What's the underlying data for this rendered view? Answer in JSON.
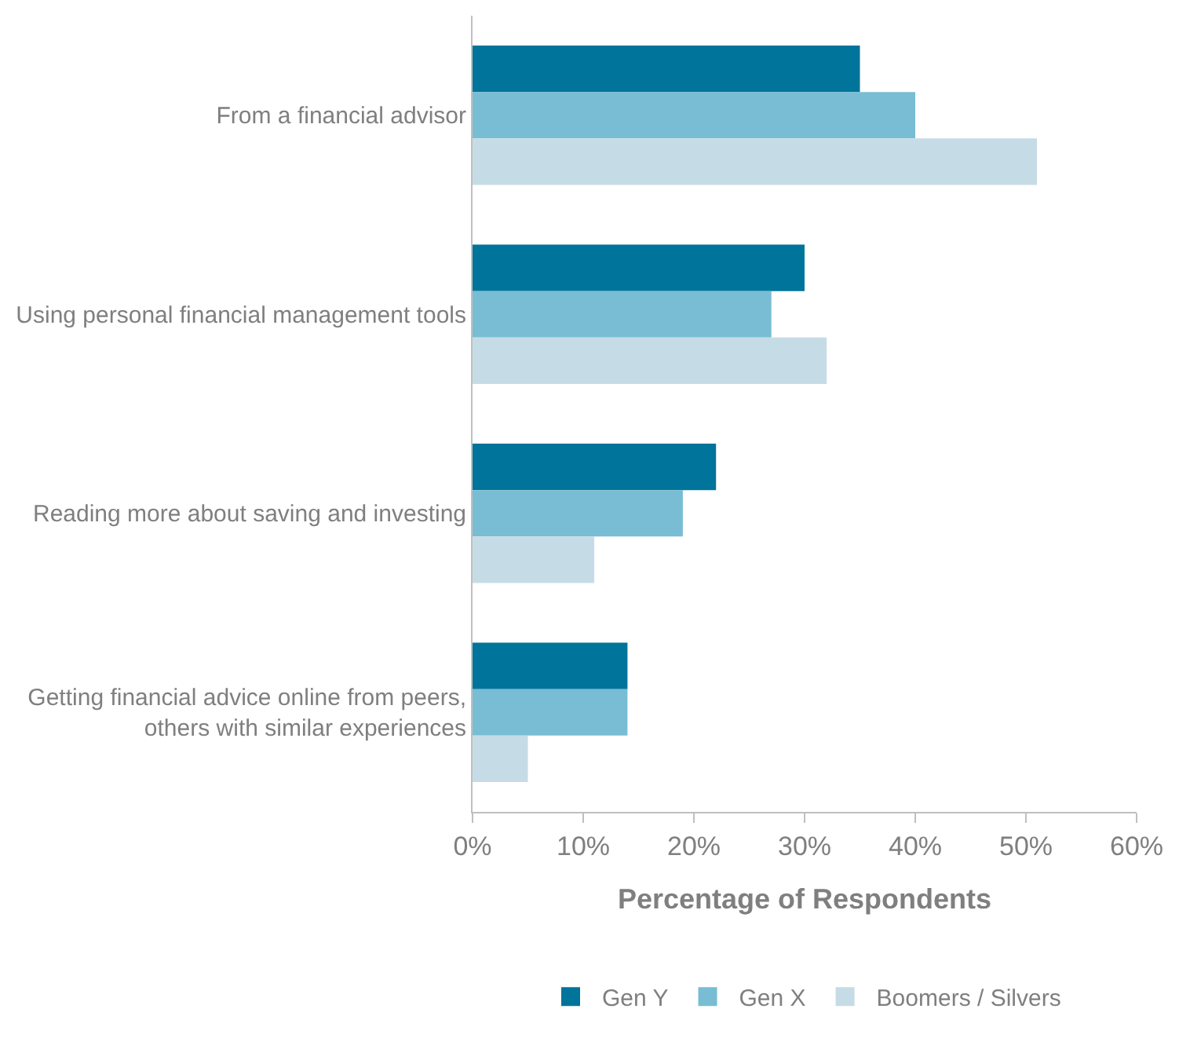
{
  "chart_data": {
    "type": "bar",
    "orientation": "horizontal",
    "xlabel": "Percentage of Respondents",
    "categories": [
      "From a financial advisor",
      "Using personal financial management tools",
      "Reading more about saving and investing",
      "Getting financial advice online from peers,\nothers with similar experiences"
    ],
    "series": [
      {
        "name": "Gen Y",
        "color": "#00749a",
        "values": [
          35,
          30,
          22,
          14
        ]
      },
      {
        "name": "Gen X",
        "color": "#78bdd3",
        "values": [
          40,
          27,
          19,
          14
        ]
      },
      {
        "name": "Boomers / Silvers",
        "color": "#c5dce6",
        "values": [
          51,
          32,
          11,
          5
        ]
      }
    ],
    "xlim": [
      0,
      60
    ],
    "xticks": [
      {
        "value": 0,
        "label": "0%"
      },
      {
        "value": 10,
        "label": "10%"
      },
      {
        "value": 20,
        "label": "20%"
      },
      {
        "value": 30,
        "label": "30%"
      },
      {
        "value": 40,
        "label": "40%"
      },
      {
        "value": 50,
        "label": "50%"
      },
      {
        "value": 60,
        "label": "60%"
      }
    ],
    "grid": false,
    "legend": "bottom"
  }
}
